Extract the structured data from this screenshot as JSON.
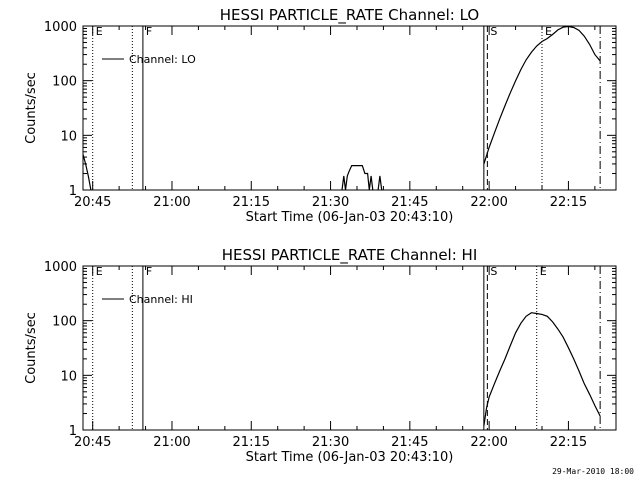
{
  "footer": {
    "timestamp": "29-Mar-2010 18:00"
  },
  "chart_data": [
    {
      "type": "line",
      "title": "HESSI PARTICLE_RATE Channel: LO",
      "xlabel": "Start Time (06-Jan-03 20:43:10)",
      "ylabel": "Counts/sec",
      "y_scale": "log",
      "ylim": [
        1,
        1000
      ],
      "xlim": [
        "20:43:10",
        "22:24:00"
      ],
      "x_ticks": [
        "20:45",
        "21:00",
        "21:15",
        "21:30",
        "21:45",
        "22:00",
        "22:15"
      ],
      "y_ticks": [
        "1",
        "10",
        "100",
        "1000"
      ],
      "legend": {
        "position": "top-left",
        "entries": [
          "Channel: LO"
        ]
      },
      "series": [
        {
          "name": "Channel: LO",
          "segments": [
            [
              [
                "20:43:10",
                4.5
              ],
              [
                "20:43:40",
                3.0
              ],
              [
                "20:44:10",
                1.8
              ],
              [
                "20:44:40",
                1.0
              ]
            ],
            [
              [
                "21:32:10",
                1.0
              ],
              [
                "21:32:30",
                1.8
              ],
              [
                "21:32:50",
                1.0
              ],
              [
                "21:33:10",
                1.8
              ],
              [
                "21:33:30",
                2.2
              ],
              [
                "21:34:00",
                2.8
              ],
              [
                "21:36:00",
                2.8
              ],
              [
                "21:36:30",
                2.0
              ],
              [
                "21:37:00",
                2.0
              ],
              [
                "21:37:20",
                1.0
              ],
              [
                "21:37:40",
                1.8
              ],
              [
                "21:38:00",
                1.0
              ]
            ],
            [
              [
                "21:39:00",
                1.0
              ],
              [
                "21:39:20",
                1.8
              ],
              [
                "21:39:40",
                1.0
              ]
            ],
            [
              [
                "21:59:00",
                3.0
              ],
              [
                "22:00:00",
                6
              ],
              [
                "22:01:00",
                11
              ],
              [
                "22:02:00",
                20
              ],
              [
                "22:03:00",
                35
              ],
              [
                "22:04:00",
                60
              ],
              [
                "22:05:00",
                100
              ],
              [
                "22:06:00",
                160
              ],
              [
                "22:07:00",
                240
              ],
              [
                "22:08:00",
                330
              ],
              [
                "22:09:00",
                430
              ],
              [
                "22:10:00",
                520
              ],
              [
                "22:11:00",
                590
              ],
              [
                "22:12:00",
                700
              ],
              [
                "22:13:00",
                850
              ],
              [
                "22:14:00",
                950
              ],
              [
                "22:15:00",
                980
              ],
              [
                "22:16:00",
                940
              ],
              [
                "22:17:00",
                830
              ],
              [
                "22:18:00",
                650
              ],
              [
                "22:19:00",
                460
              ],
              [
                "22:20:00",
                300
              ],
              [
                "22:21:00",
                230
              ]
            ]
          ]
        }
      ],
      "markers": [
        {
          "time": "20:45:00",
          "style": "dotted",
          "label": "E"
        },
        {
          "time": "20:52:30",
          "style": "dotted",
          "label": ""
        },
        {
          "time": "20:54:30",
          "style": "solid",
          "label": "F"
        },
        {
          "time": "21:59:00",
          "style": "solid",
          "label": ""
        },
        {
          "time": "21:59:40",
          "style": "dashed",
          "label": "S"
        },
        {
          "time": "22:10:00",
          "style": "dotted",
          "label": "E"
        },
        {
          "time": "22:21:00",
          "style": "dashdot",
          "label": ""
        }
      ]
    },
    {
      "type": "line",
      "title": "HESSI PARTICLE_RATE Channel: HI",
      "xlabel": "Start Time (06-Jan-03 20:43:10)",
      "ylabel": "Counts/sec",
      "y_scale": "log",
      "ylim": [
        1,
        1000
      ],
      "xlim": [
        "20:43:10",
        "22:24:00"
      ],
      "x_ticks": [
        "20:45",
        "21:00",
        "21:15",
        "21:30",
        "21:45",
        "22:00",
        "22:15"
      ],
      "y_ticks": [
        "1",
        "10",
        "100",
        "1000"
      ],
      "legend": {
        "position": "top-left",
        "entries": [
          "Channel: HI"
        ]
      },
      "series": [
        {
          "name": "Channel: HI",
          "segments": [
            [
              [
                "21:59:00",
                1.2
              ],
              [
                "21:59:30",
                2.5
              ],
              [
                "22:00:00",
                4
              ],
              [
                "22:01:00",
                7
              ],
              [
                "22:02:00",
                12
              ],
              [
                "22:03:00",
                20
              ],
              [
                "22:04:00",
                35
              ],
              [
                "22:05:00",
                60
              ],
              [
                "22:06:00",
                90
              ],
              [
                "22:07:00",
                120
              ],
              [
                "22:08:00",
                140
              ],
              [
                "22:09:00",
                135
              ],
              [
                "22:10:00",
                130
              ],
              [
                "22:11:00",
                120
              ],
              [
                "22:12:00",
                95
              ],
              [
                "22:13:00",
                70
              ],
              [
                "22:14:00",
                50
              ],
              [
                "22:15:00",
                32
              ],
              [
                "22:16:00",
                20
              ],
              [
                "22:17:00",
                12
              ],
              [
                "22:18:00",
                7
              ],
              [
                "22:19:00",
                4.5
              ],
              [
                "22:20:00",
                2.8
              ],
              [
                "22:21:00",
                1.8
              ]
            ]
          ]
        }
      ],
      "markers": [
        {
          "time": "20:45:00",
          "style": "dotted",
          "label": "E"
        },
        {
          "time": "20:52:30",
          "style": "dotted",
          "label": ""
        },
        {
          "time": "20:54:30",
          "style": "solid",
          "label": "F"
        },
        {
          "time": "21:59:00",
          "style": "solid",
          "label": ""
        },
        {
          "time": "21:59:40",
          "style": "dashed",
          "label": "S"
        },
        {
          "time": "22:09:00",
          "style": "dotted",
          "label": "E"
        },
        {
          "time": "22:21:00",
          "style": "dashdot",
          "label": ""
        }
      ]
    }
  ]
}
